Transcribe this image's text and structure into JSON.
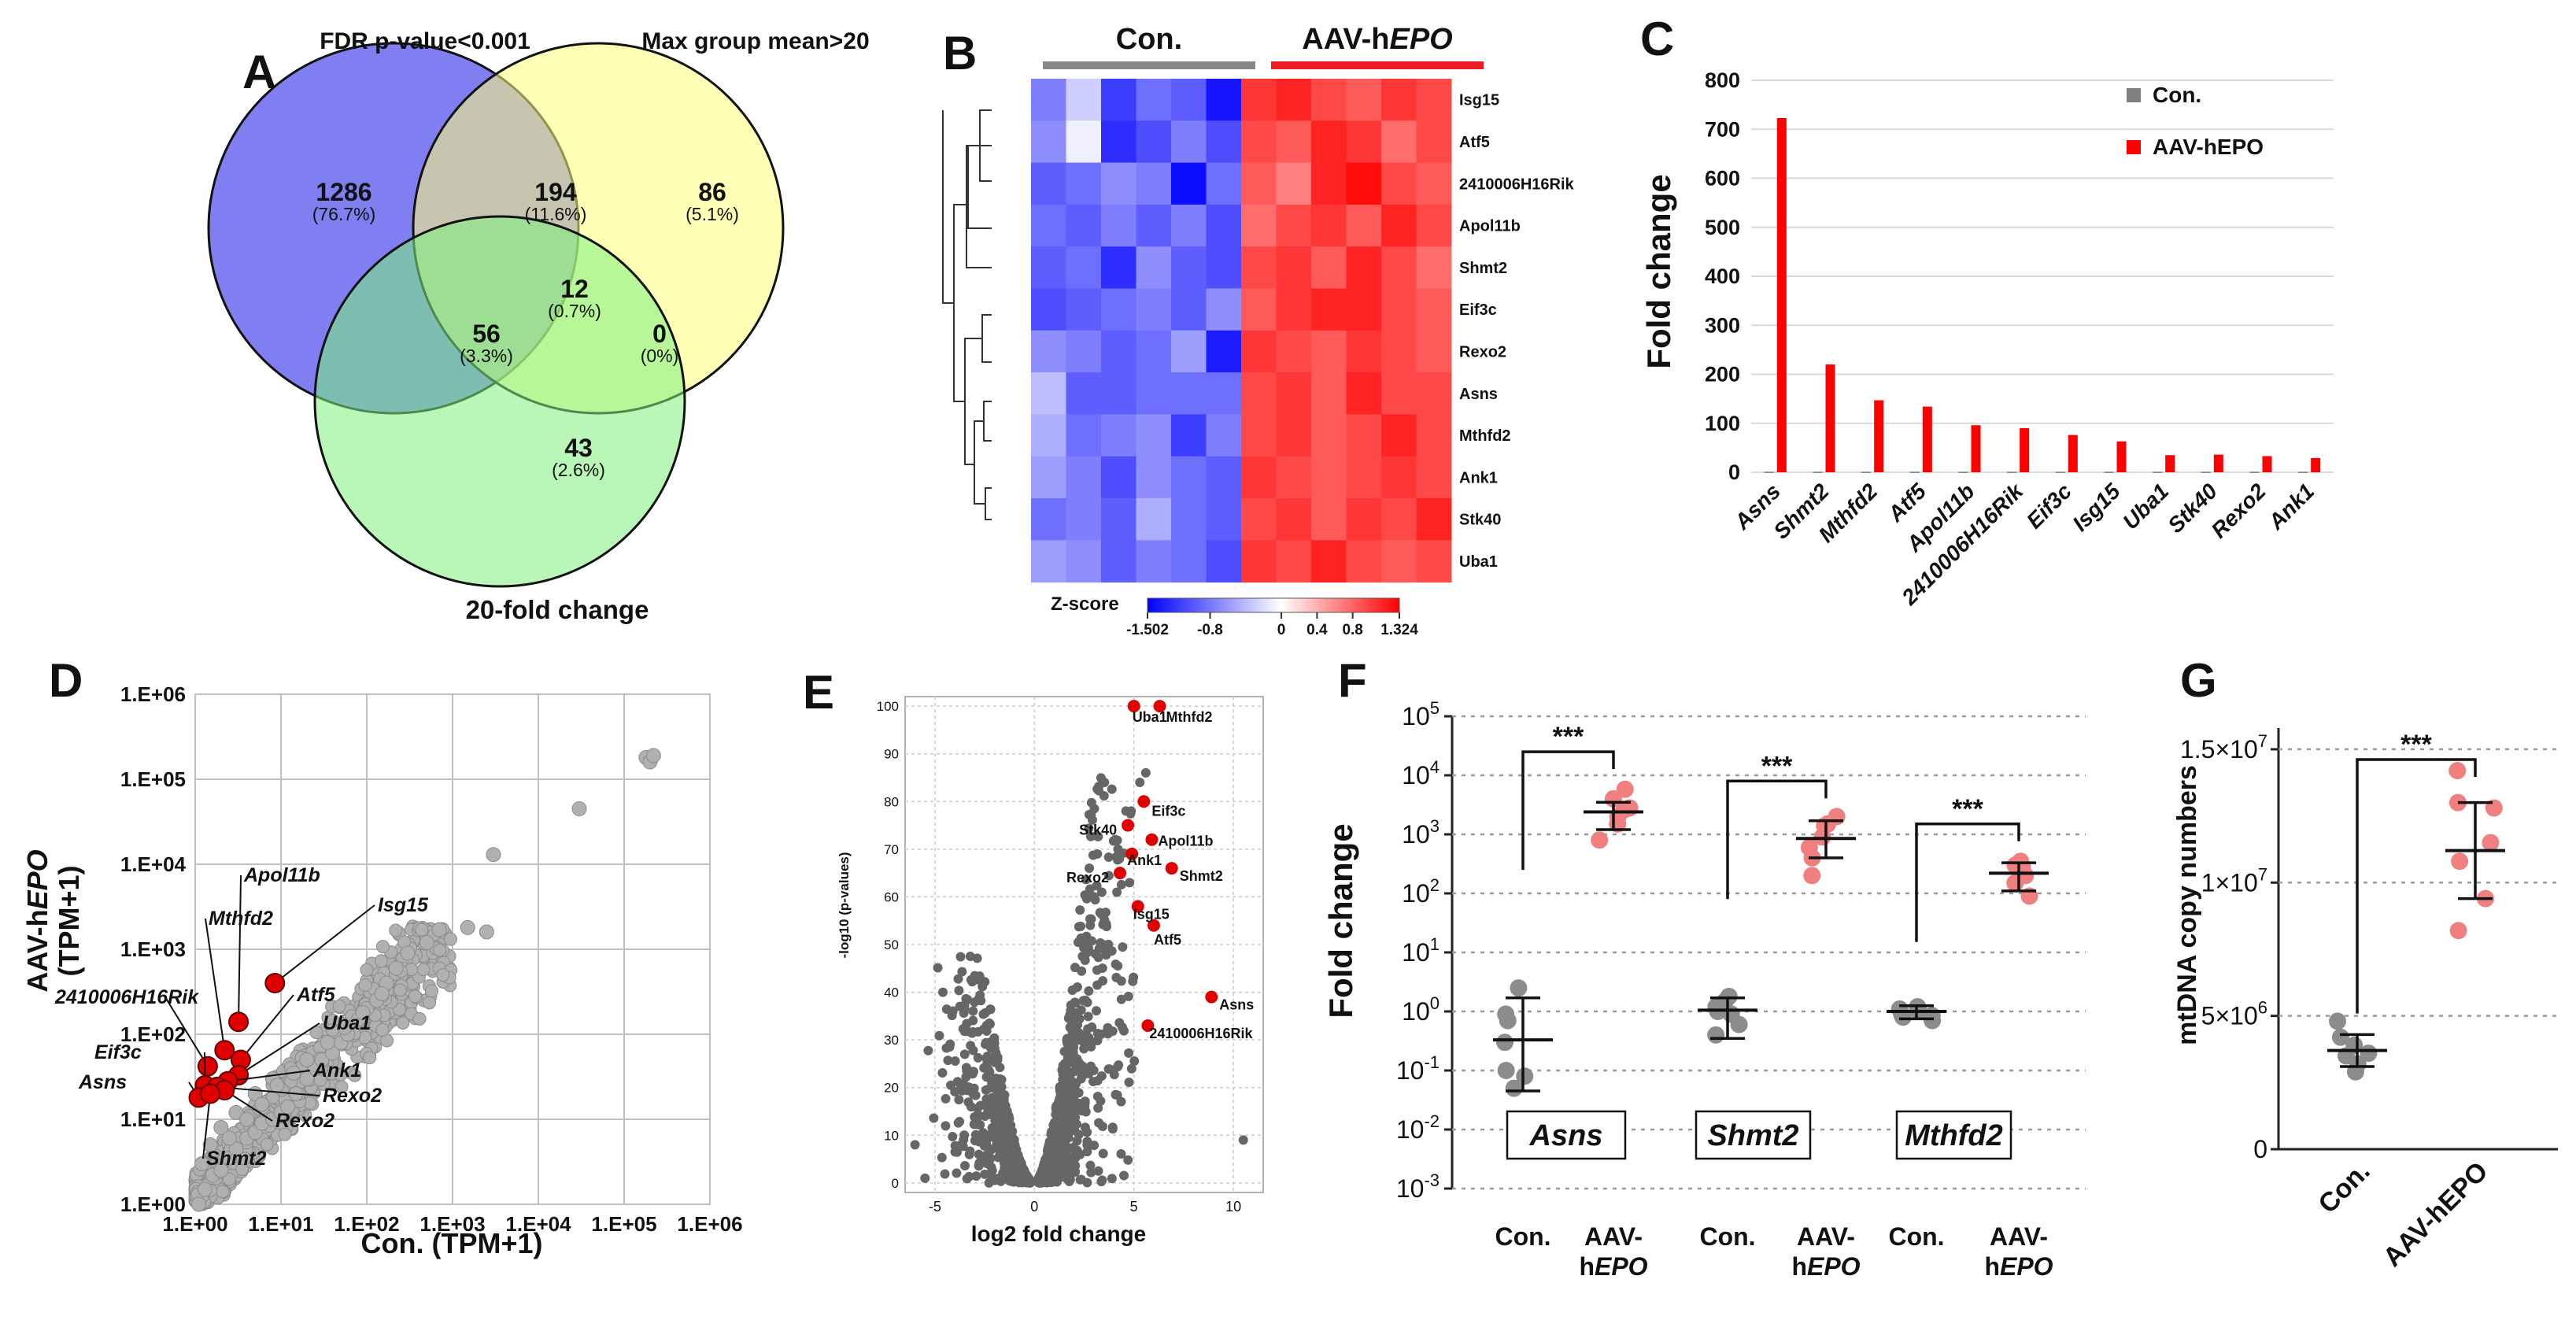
{
  "panel_letters": [
    "A",
    "B",
    "C",
    "D",
    "E",
    "F",
    "G"
  ],
  "chart_data": [
    {
      "id": "A",
      "type": "venn",
      "sets": [
        "FDR p-value<0.001",
        "Max group mean>20",
        "20-fold change"
      ],
      "regions": [
        {
          "sets": [
            "FDR p-value<0.001"
          ],
          "count": "1286",
          "pct": "(76.7%)"
        },
        {
          "sets": [
            "FDR p-value<0.001",
            "Max group mean>20"
          ],
          "count": "194",
          "pct": "(11.6%)"
        },
        {
          "sets": [
            "Max group mean>20"
          ],
          "count": "86",
          "pct": "(5.1%)"
        },
        {
          "sets": [
            "FDR p-value<0.001",
            "Max group mean>20",
            "20-fold change"
          ],
          "count": "12",
          "pct": "(0.7%)"
        },
        {
          "sets": [
            "FDR p-value<0.001",
            "20-fold change"
          ],
          "count": "56",
          "pct": "(3.3%)"
        },
        {
          "sets": [
            "Max group mean>20",
            "20-fold change"
          ],
          "count": "0",
          "pct": "(0%)"
        },
        {
          "sets": [
            "20-fold change"
          ],
          "count": "43",
          "pct": "(2.6%)"
        }
      ],
      "colors": [
        "#7f7ff2",
        "#ffff7a",
        "#7ef07e"
      ]
    },
    {
      "id": "B",
      "type": "heatmap",
      "groups": [
        {
          "label": "Con.",
          "color": "#888888"
        },
        {
          "label_pre": "AAV-h",
          "label_em": "EPO",
          "color": "#ee1c24"
        }
      ],
      "rows": [
        "Isg15",
        "Atf5",
        "2410006H16Rik",
        "Apol11b",
        "Shmt2",
        "Eif3c",
        "Rexo2",
        "Asns",
        "Mthfd2",
        "Ank1",
        "Stk40",
        "Uba1"
      ],
      "values": [
        [
          -0.8,
          -0.3,
          -1.2,
          -0.9,
          -1.0,
          -1.45,
          1.1,
          1.2,
          1.0,
          0.9,
          1.1,
          1.0
        ],
        [
          -0.7,
          -0.1,
          -1.3,
          -1.1,
          -0.8,
          -1.1,
          1.0,
          0.9,
          1.2,
          1.1,
          0.8,
          1.0
        ],
        [
          -1.0,
          -0.9,
          -0.7,
          -0.8,
          -1.5,
          -0.9,
          0.9,
          0.7,
          1.2,
          1.32,
          1.0,
          0.9
        ],
        [
          -0.9,
          -1.0,
          -0.8,
          -1.0,
          -0.8,
          -1.1,
          0.8,
          1.0,
          1.1,
          0.9,
          1.2,
          1.0
        ],
        [
          -1.0,
          -0.9,
          -1.3,
          -0.7,
          -1.0,
          -1.1,
          1.0,
          1.1,
          0.9,
          1.2,
          1.0,
          0.8
        ],
        [
          -1.1,
          -1.0,
          -0.9,
          -0.8,
          -1.0,
          -0.7,
          0.9,
          1.1,
          1.2,
          1.2,
          1.0,
          0.9
        ],
        [
          -0.7,
          -0.8,
          -1.0,
          -0.9,
          -0.6,
          -1.4,
          1.1,
          1.0,
          0.9,
          1.1,
          1.0,
          0.9
        ],
        [
          -0.4,
          -1.0,
          -1.0,
          -0.9,
          -0.9,
          -0.9,
          1.0,
          1.1,
          0.9,
          1.2,
          1.0,
          1.0
        ],
        [
          -0.5,
          -0.9,
          -0.8,
          -0.7,
          -1.2,
          -0.8,
          1.0,
          1.1,
          0.9,
          1.0,
          1.2,
          1.0
        ],
        [
          -0.6,
          -0.8,
          -1.1,
          -0.7,
          -0.9,
          -1.0,
          1.1,
          1.0,
          0.9,
          1.0,
          1.1,
          1.0
        ],
        [
          -0.9,
          -0.8,
          -1.0,
          -0.5,
          -0.9,
          -1.0,
          1.0,
          1.1,
          0.9,
          1.1,
          1.0,
          1.2
        ],
        [
          -0.6,
          -0.7,
          -1.0,
          -0.8,
          -0.9,
          -1.1,
          1.1,
          1.0,
          1.2,
          1.0,
          0.9,
          1.0
        ]
      ],
      "colorbar": {
        "title": "Z-score",
        "ticks": [
          "-1.502",
          "-0.8",
          "0",
          "0.4",
          "0.8",
          "1.324"
        ],
        "tick_values": [
          -1.502,
          -0.8,
          0,
          0.4,
          0.8,
          1.324
        ],
        "min": -1.502,
        "max": 1.324
      }
    },
    {
      "id": "C",
      "type": "bar",
      "categories": [
        "Asns",
        "Shmt2",
        "Mthfd2",
        "Atf5",
        "Apol11b",
        "2410006H16Rik",
        "Eif3c",
        "Isg15",
        "Uba1",
        "Stk40",
        "Rexo2",
        "Ank1"
      ],
      "series": [
        {
          "name": "Con.",
          "values": [
            1,
            1,
            1,
            1,
            1,
            1,
            1,
            1,
            1,
            1,
            1,
            1
          ],
          "color": "#7f7f7f"
        },
        {
          "name": "AAV-hEPO",
          "values": [
            723,
            220,
            147,
            134,
            96,
            90,
            76,
            63,
            35,
            36,
            33,
            29
          ],
          "color": "#ff0000"
        }
      ],
      "ylabel": "Fold change",
      "ylim": [
        0,
        800
      ],
      "yticks": [
        "0",
        "100",
        "200",
        "300",
        "400",
        "500",
        "600",
        "700",
        "800"
      ]
    },
    {
      "id": "D",
      "type": "scatter",
      "scale": "log",
      "xlabel": "Con. (TPM+1)",
      "ylabel_pre": "AAV-h",
      "ylabel_em": "EPO",
      "ylabel_tail": "(TPM+1)",
      "xticks": [
        "1.E+00",
        "1.E+01",
        "1.E+02",
        "1.E+03",
        "1.E+04",
        "1.E+05",
        "1.E+06"
      ],
      "yticks": [
        "1.E+00",
        "1.E+01",
        "1.E+02",
        "1.E+03",
        "1.E+04",
        "1.E+05",
        "1.E+06"
      ],
      "gray_points": [
        [
          1.1,
          1.0
        ],
        [
          1.3,
          1.5
        ],
        [
          1.6,
          2.2
        ],
        [
          2,
          2.5
        ],
        [
          2.5,
          3.5
        ],
        [
          3,
          4.5
        ],
        [
          4,
          6
        ],
        [
          5,
          7
        ],
        [
          6,
          9
        ],
        [
          8,
          10
        ],
        [
          10,
          12
        ],
        [
          12,
          14
        ],
        [
          15,
          20
        ],
        [
          20,
          30
        ],
        [
          25,
          40
        ],
        [
          30,
          50
        ],
        [
          40,
          60
        ],
        [
          50,
          80
        ],
        [
          60,
          100
        ],
        [
          80,
          150
        ],
        [
          100,
          200
        ],
        [
          130,
          250
        ],
        [
          170,
          400
        ],
        [
          220,
          600
        ],
        [
          300,
          900
        ],
        [
          500,
          1200
        ],
        [
          700,
          1700
        ],
        [
          1500,
          1800
        ],
        [
          2500,
          1600
        ],
        [
          3000,
          13000
        ],
        [
          30000,
          45000
        ],
        [
          180000,
          180000
        ],
        [
          200000,
          160000
        ],
        [
          220000,
          190000
        ],
        [
          1.5,
          5
        ],
        [
          2,
          8
        ],
        [
          3,
          12
        ],
        [
          5,
          20
        ],
        [
          8,
          30
        ],
        [
          1.2,
          3
        ],
        [
          2.5,
          6
        ],
        [
          4,
          10
        ],
        [
          6,
          15
        ],
        [
          9,
          25
        ],
        [
          14,
          35
        ],
        [
          20,
          50
        ],
        [
          35,
          80
        ],
        [
          55,
          120
        ],
        [
          90,
          180
        ],
        [
          150,
          300
        ]
      ],
      "highlight": [
        {
          "label": "Isg15",
          "x": 8.5,
          "y": 400
        },
        {
          "label": "Apol11b",
          "x": 3.2,
          "y": 140
        },
        {
          "label": "Mthfd2",
          "x": 2.2,
          "y": 65
        },
        {
          "label": "Atf5",
          "x": 3.4,
          "y": 50
        },
        {
          "label": "2410006H16Rik",
          "x": 1.4,
          "y": 42
        },
        {
          "label": "Uba1",
          "x": 3.2,
          "y": 33
        },
        {
          "label": "Eif3c",
          "x": 1.3,
          "y": 25
        },
        {
          "label": "Ank1",
          "x": 2.4,
          "y": 28
        },
        {
          "label": "Asns",
          "x": 1.1,
          "y": 18
        },
        {
          "label": "Rexo2",
          "x": 1.8,
          "y": 24
        },
        {
          "label": "Rexo2",
          "x": 2.2,
          "y": 22
        },
        {
          "label": "Shmt2",
          "x": 1.5,
          "y": 20
        }
      ]
    },
    {
      "id": "E",
      "type": "volcano",
      "xlabel": "log2 fold change",
      "ylabel": "-log10 (p-values)",
      "xticks": [
        "-5",
        "0",
        "5",
        "10"
      ],
      "xtick_values": [
        -5,
        0,
        5,
        10
      ],
      "yticks": [
        "0",
        "10",
        "20",
        "30",
        "40",
        "50",
        "60",
        "70",
        "80",
        "90",
        "100"
      ],
      "highlight": [
        {
          "label": "Uba1",
          "x": 5.0,
          "y": 100
        },
        {
          "label": "Mthfd2",
          "x": 6.3,
          "y": 100
        },
        {
          "label": "Eif3c",
          "x": 5.5,
          "y": 80
        },
        {
          "label": "Stk40",
          "x": 4.7,
          "y": 75
        },
        {
          "label": "Apol11b",
          "x": 5.9,
          "y": 72
        },
        {
          "label": "Ank1",
          "x": 4.9,
          "y": 69
        },
        {
          "label": "Rexo2",
          "x": 4.3,
          "y": 65
        },
        {
          "label": "Shmt2",
          "x": 6.9,
          "y": 66
        },
        {
          "label": "Isg15",
          "x": 5.2,
          "y": 58
        },
        {
          "label": "Atf5",
          "x": 6.0,
          "y": 54
        },
        {
          "label": "Asns",
          "x": 8.9,
          "y": 39
        },
        {
          "label": "2410006H16Rik",
          "x": 5.7,
          "y": 33
        }
      ]
    },
    {
      "id": "F",
      "type": "dot-error",
      "scale": "log",
      "ylabel": "Fold change",
      "yticks": [
        {
          "base": "10",
          "exp": "5"
        },
        {
          "base": "10",
          "exp": "4"
        },
        {
          "base": "10",
          "exp": "3"
        },
        {
          "base": "10",
          "exp": "2"
        },
        {
          "base": "10",
          "exp": "1"
        },
        {
          "base": "10",
          "exp": "0"
        },
        {
          "base": "10",
          "exp": "-1"
        },
        {
          "base": "10",
          "exp": "-2"
        },
        {
          "base": "10",
          "exp": "-3"
        }
      ],
      "genes": [
        "Asns",
        "Shmt2",
        "Mthfd2"
      ],
      "significance": [
        "***",
        "***",
        "***"
      ],
      "groups": [
        {
          "gene": "Asns",
          "label_a": "Con.",
          "label_b": "",
          "mean": 0.33,
          "err": [
            0.045,
            1.7
          ],
          "points": [
            0.3,
            0.9,
            2.5,
            0.08,
            0.05,
            0.1,
            0.7
          ],
          "color": "#8c8c8c"
        },
        {
          "gene": "Asns",
          "label_a": "AAV-",
          "label_b": "EPO",
          "mean": 2400,
          "err": [
            1200,
            3500
          ],
          "points": [
            1500,
            2000,
            4000,
            5800,
            2800,
            800,
            2600
          ],
          "color": "#f08080"
        },
        {
          "gene": "Shmt2",
          "label_a": "Con.",
          "label_b": "",
          "mean": 1.05,
          "err": [
            0.35,
            1.7
          ],
          "points": [
            1.0,
            1.2,
            1.5,
            0.4,
            0.6,
            1.8,
            0.9
          ],
          "color": "#8c8c8c"
        },
        {
          "gene": "Shmt2",
          "label_a": "AAV-",
          "label_b": "EPO",
          "mean": 850,
          "err": [
            400,
            1700
          ],
          "points": [
            2000,
            1500,
            900,
            1400,
            400,
            200,
            600
          ],
          "color": "#f08080"
        },
        {
          "gene": "Mthfd2",
          "label_a": "Con.",
          "label_b": "",
          "mean": 1.0,
          "err": [
            0.75,
            1.25
          ],
          "points": [
            1.0,
            0.8,
            0.7,
            1.2,
            1.1,
            0.9,
            0.85
          ],
          "color": "#8c8c8c"
        },
        {
          "gene": "Mthfd2",
          "label_a": "AAV-",
          "label_b": "EPO",
          "mean": 220,
          "err": [
            110,
            330
          ],
          "points": [
            350,
            250,
            150,
            90,
            300,
            200,
            280
          ],
          "color": "#f08080"
        }
      ]
    },
    {
      "id": "G",
      "type": "dot-error",
      "ylabel": "mtDNA copy numbers",
      "yticks": [
        {
          "label": "0"
        },
        {
          "label": "5×10",
          "exp": "6"
        },
        {
          "label": "1×10",
          "exp": "7"
        },
        {
          "label": "1.5×10",
          "exp": "7"
        }
      ],
      "ylim": [
        0,
        15500000
      ],
      "significance": "***",
      "groups": [
        {
          "label": "Con.",
          "mean": 3700000,
          "err": [
            3100000,
            4300000
          ],
          "points": [
            4800000,
            4200000,
            3900000,
            3500000,
            3200000,
            3600000,
            2900000
          ],
          "color": "#8c8c8c"
        },
        {
          "label": "AAV-hEPO",
          "mean": 11200000,
          "err": [
            9400000,
            13000000
          ],
          "points": [
            14200000,
            13000000,
            12800000,
            11500000,
            10800000,
            9400000,
            8200000
          ],
          "color": "#f08080"
        }
      ]
    }
  ]
}
